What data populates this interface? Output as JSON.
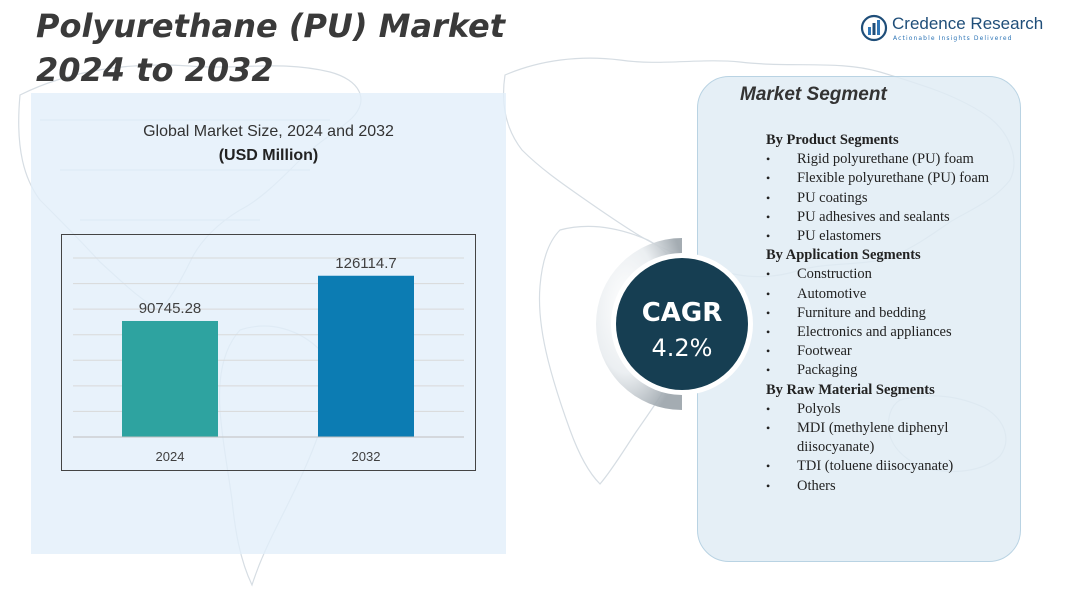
{
  "title_line1": "Polyurethane (PU) Market",
  "title_line2": "2024 to 2032",
  "brand": {
    "name": "Credence Research",
    "tagline": "Actionable Insights Delivered",
    "logo_icon": "bar-chart-circle-icon"
  },
  "chart_panel": {
    "subtitle": "Global Market Size,  2024 and 2032",
    "unit": "(USD Million)"
  },
  "chart_data": {
    "type": "bar",
    "categories": [
      "2024",
      "2032"
    ],
    "values": [
      90745.28,
      126114.7
    ],
    "value_labels": [
      "90745.28",
      "126114.7"
    ],
    "colors": [
      "#2ea3a0",
      "#0c7cb3"
    ],
    "ylim": [
      0,
      140000
    ],
    "grid": true
  },
  "cagr": {
    "label": "CAGR",
    "value": "4.2%",
    "color": "#163e52"
  },
  "segments": {
    "title": "Market Segment",
    "groups": [
      {
        "heading": "By Product Segments",
        "items": [
          "Rigid polyurethane (PU) foam",
          "Flexible polyurethane (PU) foam",
          "PU coatings",
          "PU adhesives and sealants",
          "PU elastomers"
        ]
      },
      {
        "heading": "By Application Segments",
        "items": [
          "Construction",
          "Automotive",
          "Furniture and bedding",
          "Electronics and appliances",
          "Footwear",
          "Packaging"
        ]
      },
      {
        "heading": "By Raw Material Segments",
        "items": [
          "Polyols",
          "MDI (methylene diphenyl diisocyanate)",
          "TDI (toluene diisocyanate)",
          "Others"
        ]
      }
    ]
  }
}
